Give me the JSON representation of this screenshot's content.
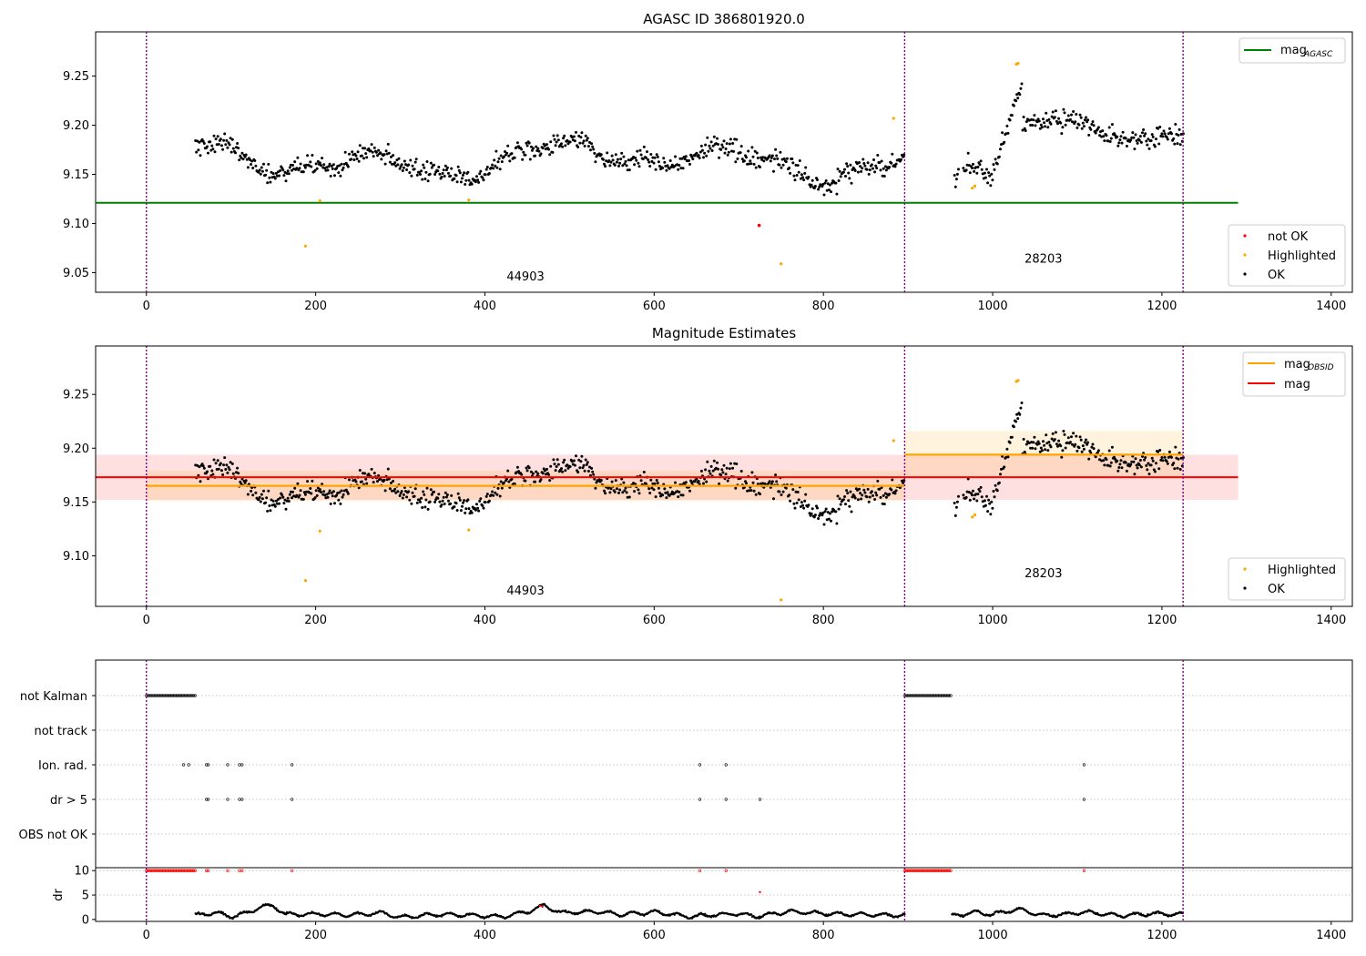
{
  "figure": {
    "background": "#ffffff"
  },
  "x_ticks": [
    0,
    200,
    400,
    600,
    800,
    1000,
    1200,
    1400
  ],
  "xlim": [
    -60,
    1425
  ],
  "obs_boundaries": [
    0,
    896,
    1225
  ],
  "colors": {
    "ok": "#000000",
    "highlighted": "#ffa500",
    "not_ok": "#ff0000",
    "agasc_line": "#008000",
    "mag_line": "#ff0000",
    "obsid_line": "#ffa500",
    "boundary": "#800080"
  },
  "chart_data": [
    {
      "type": "scatter",
      "title": "AGASC ID 386801920.0",
      "ylim": [
        9.03,
        9.295
      ],
      "y_ticks": [
        9.05,
        9.1,
        9.15,
        9.2,
        9.25
      ],
      "y_tick_labels": [
        "9.05",
        "9.10",
        "9.15",
        "9.20",
        "9.25"
      ],
      "mag_agasc": 9.121,
      "mag_agasc_xrange": [
        -60,
        1290
      ],
      "obs_labels": [
        {
          "text": "44903",
          "x": 448,
          "y": 9.042
        },
        {
          "text": "28203",
          "x": 1060,
          "y": 9.06
        }
      ],
      "legend_top": {
        "label": "mag",
        "subscript": "AGASC",
        "position": "top-right"
      },
      "legend_bottom": {
        "entries": [
          "not OK",
          "Highlighted",
          "OK"
        ],
        "position": "lower-right"
      },
      "not_ok_points": [
        [
          724,
          9.098
        ]
      ],
      "highlighted_points": [
        [
          188,
          9.077
        ],
        [
          205,
          9.123
        ],
        [
          381,
          9.124
        ],
        [
          750,
          9.059
        ],
        [
          883,
          9.207
        ],
        [
          976,
          9.136
        ],
        [
          979,
          9.138
        ],
        [
          1028,
          9.262
        ],
        [
          1030,
          9.263
        ]
      ]
    },
    {
      "type": "scatter",
      "title": "Magnitude Estimates",
      "ylim": [
        9.053,
        9.295
      ],
      "y_ticks": [
        9.1,
        9.15,
        9.2,
        9.25
      ],
      "y_tick_labels": [
        "9.10",
        "9.15",
        "9.20",
        "9.25"
      ],
      "mag": 9.173,
      "mag_band": [
        9.152,
        9.194
      ],
      "mag_xrange": [
        -60,
        1290
      ],
      "obsid_segments": [
        {
          "x": [
            0,
            896
          ],
          "mag": 9.165,
          "band": [
            9.151,
            9.179
          ]
        },
        {
          "x": [
            896,
            1225
          ],
          "mag": 9.194,
          "band": [
            9.172,
            9.216
          ]
        }
      ],
      "obs_labels": [
        {
          "text": "44903",
          "x": 448,
          "y": 9.064
        },
        {
          "text": "28203",
          "x": 1060,
          "y": 9.08
        }
      ],
      "legend_top": {
        "entries": [
          {
            "label": "mag",
            "subscript": "OBSID"
          },
          {
            "label": "mag",
            "subscript": ""
          }
        ],
        "position": "top-right"
      },
      "legend_bottom": {
        "entries": [
          "Highlighted",
          "OK"
        ],
        "position": "lower-right"
      },
      "highlighted_points": [
        [
          188,
          9.077
        ],
        [
          205,
          9.123
        ],
        [
          381,
          9.124
        ],
        [
          750,
          9.059
        ],
        [
          883,
          9.207
        ],
        [
          976,
          9.136
        ],
        [
          979,
          9.138
        ],
        [
          1028,
          9.262
        ],
        [
          1030,
          9.263
        ]
      ]
    },
    {
      "type": "scatter",
      "rows": [
        "not Kalman",
        "not track",
        "Ion. rad.",
        "dr > 5",
        "OBS not OK"
      ],
      "flag_events": {
        "not Kalman": [
          [
            0,
            58
          ],
          [
            896,
            952
          ]
        ],
        "not track": [],
        "Ion. rad.": [
          44,
          50,
          71,
          73,
          96,
          110,
          113,
          172,
          654,
          685,
          1108
        ],
        "dr > 5": [
          71,
          73,
          96,
          110,
          113,
          172,
          654,
          685,
          725,
          1108
        ],
        "OBS not OK": []
      },
      "red_flag_ranges": [
        [
          0,
          58
        ],
        [
          896,
          952
        ]
      ],
      "red_flag_points": [
        71,
        73,
        96,
        110,
        113,
        172,
        654,
        685,
        1108
      ]
    },
    {
      "type": "line",
      "ylabel": "dr",
      "ylim": [
        -0.4,
        10.6
      ],
      "y_ticks": [
        0,
        5,
        10
      ],
      "y_tick_labels": [
        "0",
        "5",
        "10"
      ],
      "y_gridlines": [
        5,
        10
      ],
      "segments": [
        {
          "x": [
            58,
            896
          ],
          "points": [
            [
              58,
              0.8
            ],
            [
              80,
              1.4
            ],
            [
              100,
              0.6
            ],
            [
              120,
              1.3
            ],
            [
              135,
              2.6
            ],
            [
              150,
              2.8
            ],
            [
              165,
              1.0
            ],
            [
              200,
              1.1
            ],
            [
              240,
              0.9
            ],
            [
              280,
              1.3
            ],
            [
              300,
              0.4
            ],
            [
              340,
              1.0
            ],
            [
              380,
              0.9
            ],
            [
              420,
              0.5
            ],
            [
              450,
              1.6
            ],
            [
              470,
              2.8
            ],
            [
              490,
              1.4
            ],
            [
              530,
              1.6
            ],
            [
              560,
              1.0
            ],
            [
              600,
              1.5
            ],
            [
              640,
              0.6
            ],
            [
              700,
              1.2
            ],
            [
              720,
              0.6
            ],
            [
              760,
              1.6
            ],
            [
              800,
              1.2
            ],
            [
              850,
              1.0
            ],
            [
              896,
              0.8
            ]
          ]
        },
        {
          "x": [
            952,
            1225
          ],
          "points": [
            [
              952,
              0.7
            ],
            [
              980,
              1.5
            ],
            [
              1000,
              1.0
            ],
            [
              1030,
              2.1
            ],
            [
              1060,
              0.8
            ],
            [
              1090,
              1.1
            ],
            [
              1110,
              1.5
            ],
            [
              1150,
              0.8
            ],
            [
              1190,
              1.2
            ],
            [
              1225,
              1.0
            ]
          ]
        }
      ],
      "red_points": [
        [
          725,
          5.6
        ],
        [
          465,
          2.8
        ],
        [
          468,
          2.6
        ]
      ]
    }
  ]
}
